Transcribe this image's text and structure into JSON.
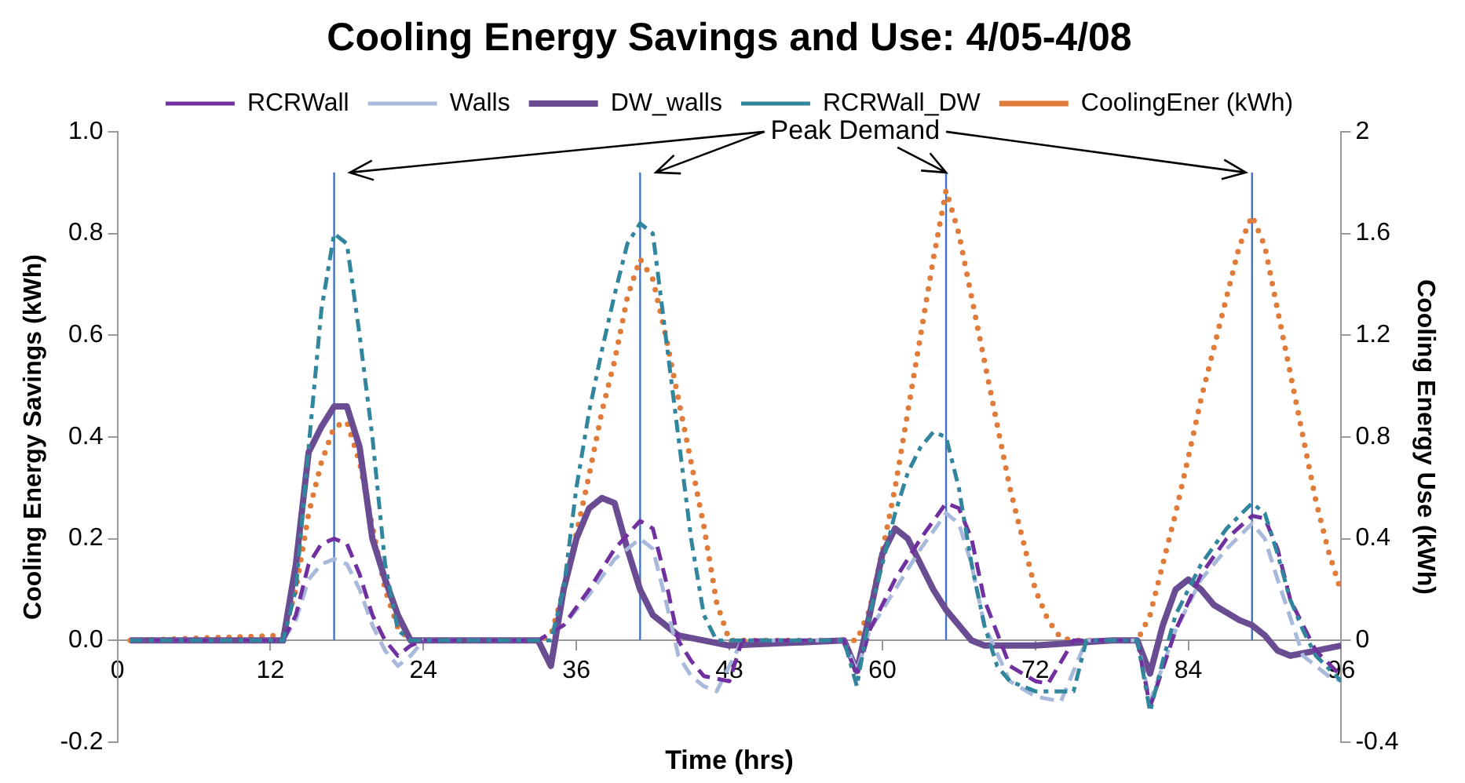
{
  "chart_data": {
    "type": "line",
    "title": "Cooling Energy Savings and Use: 4/05-4/08",
    "xlabel": "Time (hrs)",
    "ylabel": "Cooling Energy Savings (kWh)",
    "y2label": "Cooling Energy Use (kWh)",
    "annotations": [
      {
        "text": "Peak Demand",
        "x": 65,
        "y": 0.92
      }
    ],
    "xlim": [
      0,
      96
    ],
    "xticks": [
      0,
      12,
      24,
      36,
      48,
      60,
      72,
      84,
      96
    ],
    "ylim": [
      -0.2,
      1
    ],
    "yticks": [
      {
        "value": -0.2,
        "label": "-0.2"
      },
      {
        "value": 0,
        "label": "0.0"
      },
      {
        "value": 0.2,
        "label": "0.2"
      },
      {
        "value": 0.4,
        "label": "0.4"
      },
      {
        "value": 0.6,
        "label": "0.6"
      },
      {
        "value": 0.8,
        "label": "0.8"
      },
      {
        "value": 1,
        "label": "1.0"
      }
    ],
    "y2lim": [
      -0.4,
      2
    ],
    "y2ticks": [
      -0.4,
      0,
      0.4,
      0.8,
      1.2,
      1.6,
      2
    ],
    "grid": false,
    "legend": "top",
    "marker": "none",
    "series": [
      {
        "name": "RCRWall",
        "color": "#7030a0",
        "line_style": "dashed",
        "x": [
          1,
          13,
          14,
          15,
          16,
          17,
          18,
          19,
          20,
          21,
          22,
          23,
          24,
          33,
          35,
          37,
          39,
          41,
          42,
          43,
          44,
          45,
          46,
          48,
          49,
          57,
          58,
          59,
          61,
          63,
          65,
          66,
          67,
          68,
          70,
          72,
          73,
          75,
          80,
          81,
          83,
          85,
          87,
          89,
          90,
          91,
          92,
          94,
          96
        ],
        "values": [
          0,
          0,
          0.05,
          0.15,
          0.19,
          0.2,
          0.19,
          0.13,
          0.05,
          0,
          -0.03,
          -0.01,
          0,
          0,
          0.03,
          0.1,
          0.18,
          0.235,
          0.22,
          0.12,
          0,
          -0.04,
          -0.07,
          -0.08,
          0,
          0,
          -0.07,
          0.02,
          0.12,
          0.2,
          0.27,
          0.26,
          0.2,
          0.08,
          -0.05,
          -0.08,
          -0.085,
          0,
          0,
          -0.13,
          0.02,
          0.13,
          0.2,
          0.245,
          0.24,
          0.18,
          0.08,
          -0.02,
          -0.07
        ]
      },
      {
        "name": "Walls",
        "color": "#a9b9dc",
        "line_style": "dashed",
        "x": [
          1,
          13,
          14,
          15,
          16,
          17,
          18,
          19,
          20,
          21,
          22,
          23,
          24,
          33,
          35,
          37,
          39,
          41,
          42,
          43,
          44,
          45,
          46,
          47,
          48,
          49,
          57,
          58,
          59,
          61,
          63,
          65,
          66,
          67,
          68,
          70,
          72,
          74,
          76,
          80,
          81,
          83,
          85,
          87,
          89,
          90,
          91,
          93,
          95,
          96
        ],
        "values": [
          0,
          0,
          0.04,
          0.12,
          0.15,
          0.16,
          0.15,
          0.1,
          0.03,
          -0.02,
          -0.05,
          -0.03,
          0,
          0,
          0.03,
          0.09,
          0.16,
          0.2,
          0.18,
          0.08,
          -0.03,
          -0.07,
          -0.09,
          -0.1,
          -0.05,
          0,
          0,
          -0.06,
          0.02,
          0.1,
          0.18,
          0.25,
          0.23,
          0.15,
          0.03,
          -0.08,
          -0.11,
          -0.12,
          0,
          0,
          -0.12,
          0.02,
          0.12,
          0.18,
          0.23,
          0.2,
          0.12,
          -0.03,
          -0.07,
          -0.08
        ]
      },
      {
        "name": "DW_walls",
        "color": "#6a4c93",
        "line_style": "solid",
        "x": [
          1,
          13,
          14,
          15,
          16,
          17,
          18,
          19,
          20,
          21,
          22,
          23,
          33,
          34,
          35,
          36,
          37,
          38,
          39,
          40,
          41,
          42,
          44,
          46,
          48,
          57,
          58,
          59,
          60,
          61,
          62,
          63,
          64,
          65,
          66,
          67,
          68,
          72,
          78,
          80,
          81,
          82,
          83,
          84,
          85,
          86,
          88,
          89,
          90,
          91,
          92,
          94,
          96
        ],
        "values": [
          0,
          0,
          0.15,
          0.37,
          0.42,
          0.46,
          0.46,
          0.38,
          0.2,
          0.12,
          0.05,
          0,
          0,
          -0.05,
          0.1,
          0.2,
          0.26,
          0.28,
          0.27,
          0.18,
          0.1,
          0.05,
          0.01,
          0,
          -0.01,
          0,
          -0.06,
          0.05,
          0.17,
          0.22,
          0.2,
          0.15,
          0.1,
          0.06,
          0.03,
          0,
          -0.01,
          -0.01,
          0,
          0,
          -0.065,
          0.03,
          0.1,
          0.12,
          0.1,
          0.07,
          0.04,
          0.03,
          0.01,
          -0.02,
          -0.03,
          -0.02,
          -0.01
        ]
      },
      {
        "name": "RCRWall_DW",
        "color": "#31859c",
        "line_style": "dashdot",
        "x": [
          1,
          13,
          14,
          15,
          16,
          17,
          18,
          19,
          20,
          21,
          22,
          23,
          33,
          34,
          35,
          36,
          37,
          38,
          39,
          40,
          41,
          42,
          43,
          44,
          45,
          46,
          47,
          57,
          58,
          59,
          60,
          61,
          62,
          63,
          64,
          65,
          66,
          67,
          68,
          69,
          70,
          72,
          74,
          75,
          76,
          80,
          81,
          82,
          83,
          85,
          87,
          89,
          90,
          91,
          92,
          93,
          94,
          96
        ],
        "values": [
          0,
          0,
          0.1,
          0.38,
          0.65,
          0.8,
          0.78,
          0.6,
          0.4,
          0.15,
          0.02,
          0,
          0,
          0,
          0.1,
          0.3,
          0.45,
          0.57,
          0.68,
          0.78,
          0.82,
          0.8,
          0.6,
          0.4,
          0.2,
          0.05,
          0,
          0,
          -0.09,
          0.05,
          0.15,
          0.25,
          0.33,
          0.38,
          0.41,
          0.4,
          0.3,
          0.15,
          0.03,
          -0.05,
          -0.08,
          -0.1,
          -0.1,
          -0.1,
          0,
          0,
          -0.14,
          -0.04,
          0.05,
          0.15,
          0.22,
          0.27,
          0.25,
          0.17,
          0.08,
          0.02,
          -0.03,
          -0.08
        ]
      },
      {
        "name": "CoolingEner (kWh)",
        "color": "#e07b39",
        "line_style": "dotted",
        "axis": "y2",
        "x": [
          1,
          13,
          14,
          15,
          16,
          17,
          18,
          19,
          20,
          21,
          22,
          23,
          33,
          34,
          35,
          36,
          37,
          38,
          39,
          40,
          41,
          42,
          43,
          44,
          45,
          46,
          47,
          48,
          57,
          58,
          59,
          60,
          61,
          62,
          63,
          64,
          65,
          66,
          67,
          68,
          69,
          70,
          71,
          72,
          73,
          74,
          75,
          79,
          80,
          81,
          82,
          83,
          84,
          85,
          86,
          87,
          88,
          89,
          90,
          91,
          92,
          93,
          94,
          95,
          96
        ],
        "values": [
          0,
          0.02,
          0.2,
          0.5,
          0.7,
          0.84,
          0.86,
          0.7,
          0.45,
          0.2,
          0.05,
          0,
          0,
          0.02,
          0.2,
          0.42,
          0.65,
          0.9,
          1.1,
          1.35,
          1.5,
          1.42,
          1.2,
          0.95,
          0.7,
          0.45,
          0.15,
          0,
          0,
          0,
          0.12,
          0.35,
          0.6,
          0.9,
          1.2,
          1.5,
          1.77,
          1.6,
          1.35,
          1.1,
          0.85,
          0.6,
          0.4,
          0.2,
          0.08,
          0.01,
          0,
          0,
          0,
          0.1,
          0.3,
          0.5,
          0.72,
          0.95,
          1.15,
          1.35,
          1.55,
          1.67,
          1.55,
          1.3,
          1.05,
          0.8,
          0.55,
          0.35,
          0.19
        ]
      },
      {
        "color": "#4472c4",
        "line_style": "solid",
        "x": [
          17,
          17
        ],
        "values": [
          0,
          0.92
        ]
      },
      {
        "color": "#4472c4",
        "line_style": "solid",
        "x": [
          41,
          41
        ],
        "values": [
          0,
          0.92
        ]
      },
      {
        "color": "#4472c4",
        "line_style": "solid",
        "x": [
          65,
          65
        ],
        "values": [
          0,
          0.92
        ]
      },
      {
        "color": "#4472c4",
        "line_style": "solid",
        "x": [
          89,
          89
        ],
        "values": [
          0,
          0.92
        ]
      }
    ]
  }
}
